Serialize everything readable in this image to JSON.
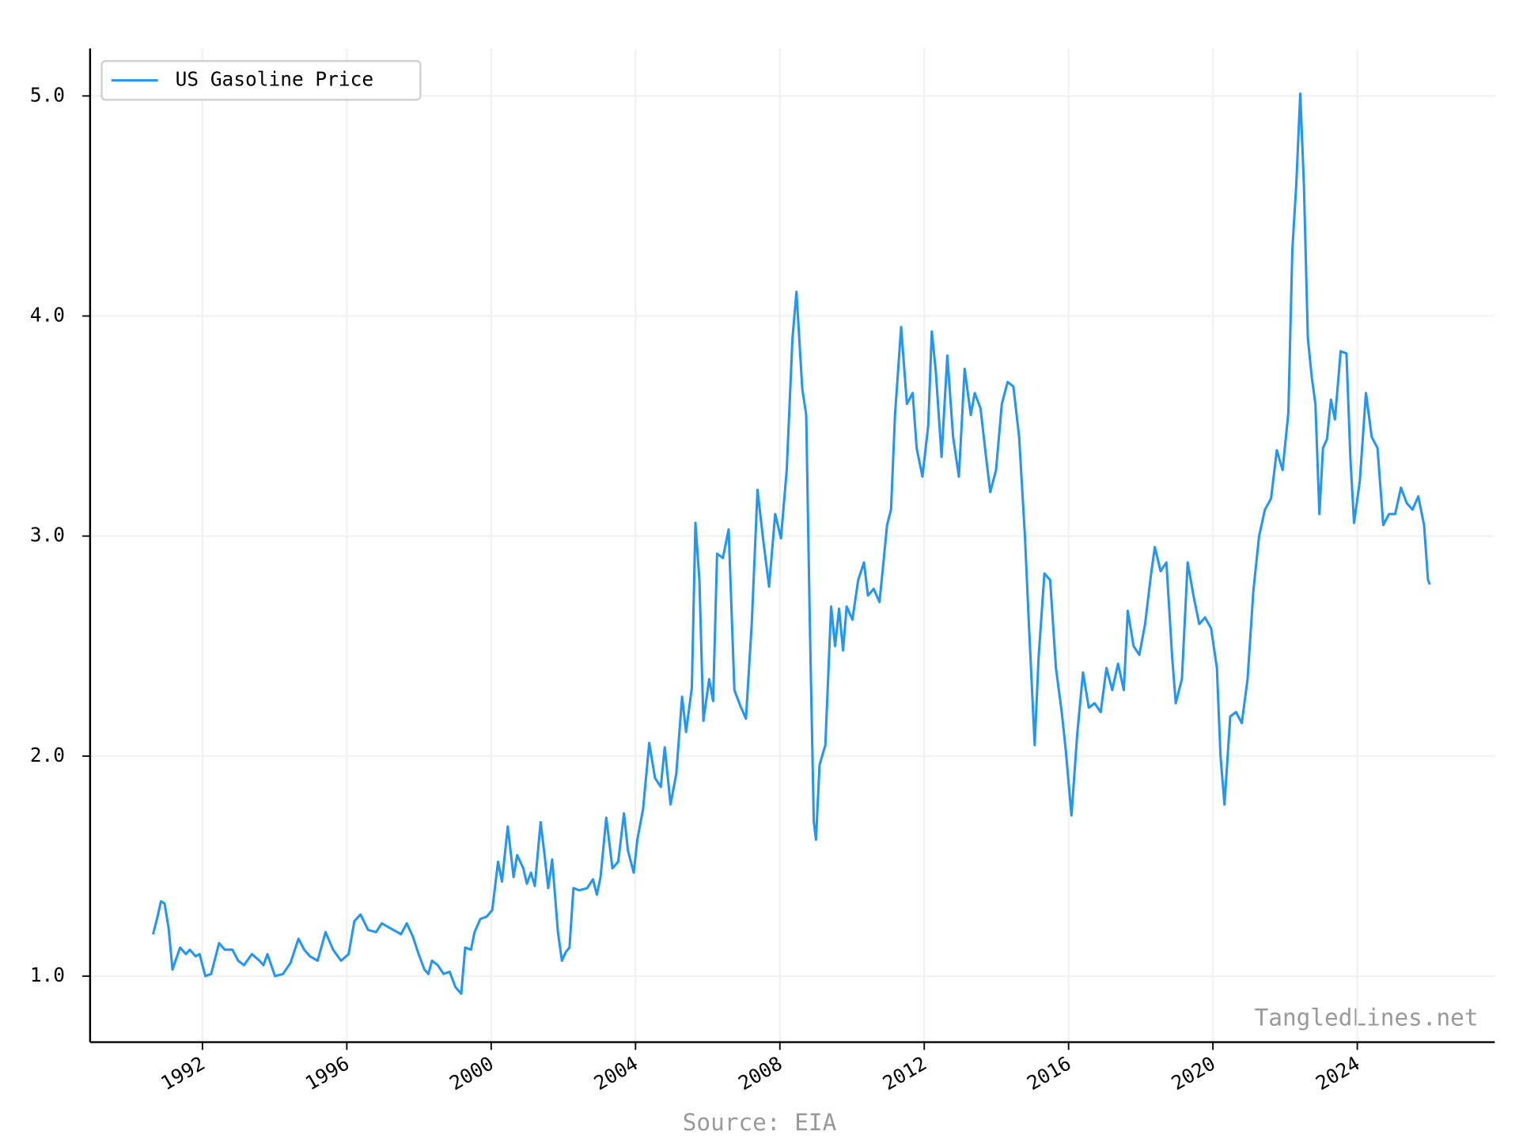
{
  "chart_data": {
    "type": "line",
    "x": [
      1990.63,
      1990.74,
      1990.85,
      1990.95,
      1991.06,
      1991.17,
      1991.38,
      1991.54,
      1991.65,
      1991.81,
      1991.92,
      1992.08,
      1992.24,
      1992.46,
      1992.62,
      1992.83,
      1992.99,
      1993.15,
      1993.37,
      1993.58,
      1993.69,
      1993.8,
      1994.01,
      1994.23,
      1994.44,
      1994.66,
      1994.82,
      1994.98,
      1995.19,
      1995.41,
      1995.62,
      1995.84,
      1996.05,
      1996.21,
      1996.38,
      1996.59,
      1996.81,
      1996.97,
      1997.18,
      1997.4,
      1997.5,
      1997.66,
      1997.83,
      1997.99,
      1998.15,
      1998.26,
      1998.36,
      1998.52,
      1998.68,
      1998.85,
      1999.01,
      1999.17,
      1999.28,
      1999.44,
      1999.54,
      1999.7,
      1999.87,
      2000.03,
      2000.19,
      2000.3,
      2000.46,
      2000.62,
      2000.72,
      2000.89,
      2000.99,
      2001.1,
      2001.21,
      2001.37,
      2001.48,
      2001.58,
      2001.69,
      2001.85,
      2001.96,
      2002.07,
      2002.17,
      2002.28,
      2002.44,
      2002.66,
      2002.82,
      2002.93,
      2003.03,
      2003.19,
      2003.36,
      2003.52,
      2003.68,
      2003.79,
      2003.95,
      2004.05,
      2004.21,
      2004.38,
      2004.54,
      2004.7,
      2004.81,
      2004.97,
      2005.13,
      2005.29,
      2005.4,
      2005.56,
      2005.66,
      2005.77,
      2005.88,
      2006.04,
      2006.15,
      2006.26,
      2006.42,
      2006.58,
      2006.74,
      2006.9,
      2007.06,
      2007.22,
      2007.38,
      2007.54,
      2007.7,
      2007.87,
      2008.03,
      2008.19,
      2008.35,
      2008.46,
      2008.62,
      2008.73,
      2008.83,
      2008.94,
      2009.0,
      2009.1,
      2009.26,
      2009.42,
      2009.53,
      2009.64,
      2009.75,
      2009.85,
      2010.01,
      2010.17,
      2010.33,
      2010.44,
      2010.6,
      2010.76,
      2010.87,
      2010.97,
      2011.08,
      2011.19,
      2011.36,
      2011.52,
      2011.68,
      2011.79,
      2011.95,
      2012.11,
      2012.21,
      2012.32,
      2012.48,
      2012.64,
      2012.8,
      2012.96,
      2013.12,
      2013.29,
      2013.4,
      2013.56,
      2013.72,
      2013.83,
      2013.99,
      2014.15,
      2014.31,
      2014.47,
      2014.63,
      2014.79,
      2014.9,
      2015.06,
      2015.17,
      2015.33,
      2015.49,
      2015.65,
      2015.81,
      2015.92,
      2016.08,
      2016.24,
      2016.4,
      2016.56,
      2016.72,
      2016.89,
      2017.05,
      2017.21,
      2017.37,
      2017.53,
      2017.64,
      2017.8,
      2017.96,
      2018.12,
      2018.28,
      2018.39,
      2018.55,
      2018.71,
      2018.87,
      2018.97,
      2019.14,
      2019.3,
      2019.46,
      2019.62,
      2019.78,
      2019.95,
      2020.11,
      2020.21,
      2020.32,
      2020.48,
      2020.64,
      2020.8,
      2020.96,
      2021.12,
      2021.28,
      2021.44,
      2021.61,
      2021.77,
      2021.93,
      2022.09,
      2022.2,
      2022.31,
      2022.42,
      2022.52,
      2022.63,
      2022.74,
      2022.84,
      2022.95,
      2023.05,
      2023.16,
      2023.27,
      2023.38,
      2023.54,
      2023.7,
      2023.81,
      2023.91,
      2024.07,
      2024.24,
      2024.4,
      2024.56,
      2024.72,
      2024.88,
      2025.05,
      2025.21,
      2025.37,
      2025.53,
      2025.69,
      2025.85,
      2025.96,
      2026.01
    ],
    "series": [
      {
        "name": "US Gasoline Price",
        "color": "#2196f3",
        "values": [
          1.19,
          1.26,
          1.34,
          1.33,
          1.22,
          1.03,
          1.13,
          1.1,
          1.12,
          1.09,
          1.1,
          1.0,
          1.01,
          1.15,
          1.12,
          1.12,
          1.07,
          1.05,
          1.1,
          1.07,
          1.05,
          1.1,
          1.0,
          1.01,
          1.06,
          1.17,
          1.12,
          1.09,
          1.07,
          1.2,
          1.12,
          1.07,
          1.1,
          1.25,
          1.28,
          1.21,
          1.2,
          1.24,
          1.22,
          1.2,
          1.19,
          1.24,
          1.18,
          1.1,
          1.03,
          1.01,
          1.07,
          1.05,
          1.01,
          1.02,
          0.95,
          0.92,
          1.13,
          1.12,
          1.2,
          1.26,
          1.27,
          1.3,
          1.52,
          1.43,
          1.68,
          1.45,
          1.55,
          1.49,
          1.42,
          1.47,
          1.41,
          1.7,
          1.55,
          1.4,
          1.53,
          1.2,
          1.07,
          1.11,
          1.13,
          1.4,
          1.39,
          1.4,
          1.44,
          1.37,
          1.45,
          1.72,
          1.49,
          1.52,
          1.74,
          1.57,
          1.47,
          1.62,
          1.76,
          2.06,
          1.9,
          1.86,
          2.04,
          1.78,
          1.92,
          2.27,
          2.11,
          2.31,
          3.06,
          2.8,
          2.16,
          2.35,
          2.25,
          2.92,
          2.9,
          3.03,
          2.3,
          2.23,
          2.17,
          2.6,
          3.21,
          2.98,
          2.77,
          3.1,
          2.99,
          3.3,
          3.9,
          4.11,
          3.67,
          3.55,
          2.6,
          1.7,
          1.62,
          1.96,
          2.05,
          2.68,
          2.5,
          2.67,
          2.48,
          2.68,
          2.62,
          2.8,
          2.88,
          2.73,
          2.76,
          2.7,
          2.88,
          3.05,
          3.12,
          3.55,
          3.95,
          3.6,
          3.65,
          3.4,
          3.27,
          3.5,
          3.93,
          3.75,
          3.36,
          3.82,
          3.45,
          3.27,
          3.76,
          3.55,
          3.65,
          3.58,
          3.35,
          3.2,
          3.3,
          3.6,
          3.7,
          3.68,
          3.45,
          3.0,
          2.6,
          2.05,
          2.45,
          2.83,
          2.8,
          2.4,
          2.2,
          2.03,
          1.73,
          2.1,
          2.38,
          2.22,
          2.24,
          2.2,
          2.4,
          2.3,
          2.42,
          2.3,
          2.66,
          2.5,
          2.46,
          2.6,
          2.82,
          2.95,
          2.84,
          2.88,
          2.45,
          2.24,
          2.35,
          2.88,
          2.73,
          2.6,
          2.63,
          2.58,
          2.4,
          2.0,
          1.78,
          2.18,
          2.2,
          2.15,
          2.35,
          2.75,
          3.0,
          3.12,
          3.17,
          3.39,
          3.3,
          3.56,
          4.3,
          4.6,
          5.01,
          4.6,
          3.9,
          3.72,
          3.6,
          3.1,
          3.4,
          3.44,
          3.62,
          3.53,
          3.84,
          3.83,
          3.35,
          3.06,
          3.25,
          3.65,
          3.45,
          3.4,
          3.05,
          3.1,
          3.1,
          3.22,
          3.15,
          3.12,
          3.18,
          3.05,
          2.8,
          2.78
        ]
      }
    ],
    "xlim": [
      1988.886,
      2027.81
    ],
    "ylim": [
      0.7,
      5.216
    ],
    "xticks": [
      1992,
      1996,
      2000,
      2004,
      2008,
      2012,
      2016,
      2020,
      2024
    ],
    "yticks": [
      {
        "value": 1,
        "label": "1.0"
      },
      {
        "value": 2,
        "label": "2.0"
      },
      {
        "value": 3,
        "label": "3.0"
      },
      {
        "value": 4,
        "label": "4.0"
      },
      {
        "value": 5,
        "label": "5.0"
      }
    ],
    "grid": true,
    "legend": "upper left",
    "watermark": "TangledLines.net",
    "source": "Source: EIA"
  }
}
